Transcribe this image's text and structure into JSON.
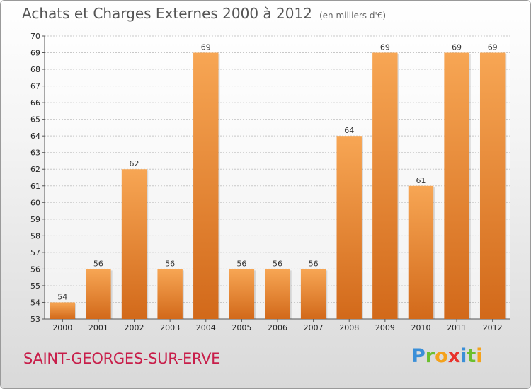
{
  "title": "Achats et Charges Externes 2000 à 2012",
  "unit": "(en milliers d'€)",
  "commune": "SAINT-GEORGES-SUR-ERVE",
  "logo": {
    "p": "P",
    "r": "r",
    "o": "o",
    "x": "x",
    "i": "i",
    "t": "t",
    "i2": "i"
  },
  "colors": {
    "bar_light": "#f7a654",
    "bar_dark": "#d2691a",
    "grid": "#c8c8c8",
    "title": "#555555",
    "commune": "#c81e4a"
  },
  "chart_data": {
    "type": "bar",
    "title": "Achats et Charges Externes 2000 à 2012",
    "subtitle": "(en milliers d'€)",
    "categories": [
      "2000",
      "2001",
      "2002",
      "2003",
      "2004",
      "2005",
      "2006",
      "2007",
      "2008",
      "2009",
      "2010",
      "2011",
      "2012"
    ],
    "values": [
      54,
      56,
      62,
      56,
      69,
      56,
      56,
      56,
      64,
      69,
      61,
      69,
      69
    ],
    "ylim": [
      53,
      70
    ],
    "yticks": [
      53,
      54,
      55,
      56,
      57,
      58,
      59,
      60,
      61,
      62,
      63,
      64,
      65,
      66,
      67,
      68,
      69,
      70
    ],
    "grid": true,
    "xlabel": "",
    "ylabel": ""
  }
}
